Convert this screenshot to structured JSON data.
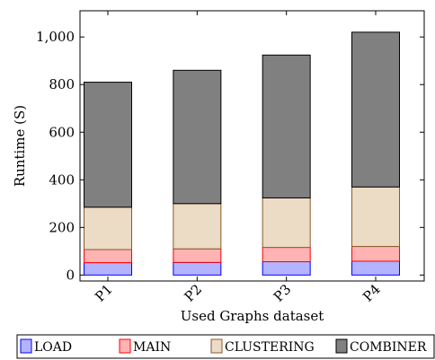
{
  "chart_data": {
    "type": "bar",
    "stacked": true,
    "categories": [
      "P1",
      "P2",
      "P3",
      "P4"
    ],
    "series": [
      {
        "name": "LOAD",
        "values": [
          52,
          53,
          56,
          58
        ],
        "fill": "#b3b3ff",
        "stroke": "#0000ff"
      },
      {
        "name": "MAIN",
        "values": [
          55,
          57,
          60,
          62
        ],
        "fill": "#ffb3b3",
        "stroke": "#ff0000"
      },
      {
        "name": "CLUSTERING",
        "values": [
          178,
          190,
          208,
          250
        ],
        "fill": "#ecdbc5",
        "stroke": "#8a5a2b"
      },
      {
        "name": "COMBINER",
        "values": [
          525,
          560,
          600,
          650
        ],
        "fill": "#808080",
        "stroke": "#000000"
      }
    ],
    "title": "",
    "xlabel": "Used Graphs dataset",
    "ylabel": "Runtime (S)",
    "ylim": [
      -25,
      1110
    ],
    "yticks": [
      0,
      200,
      400,
      600,
      800,
      1000
    ],
    "ytick_labels": [
      "0",
      "200",
      "400",
      "600",
      "800",
      "1,000"
    ],
    "grid": false,
    "legend_position": "bottom"
  }
}
